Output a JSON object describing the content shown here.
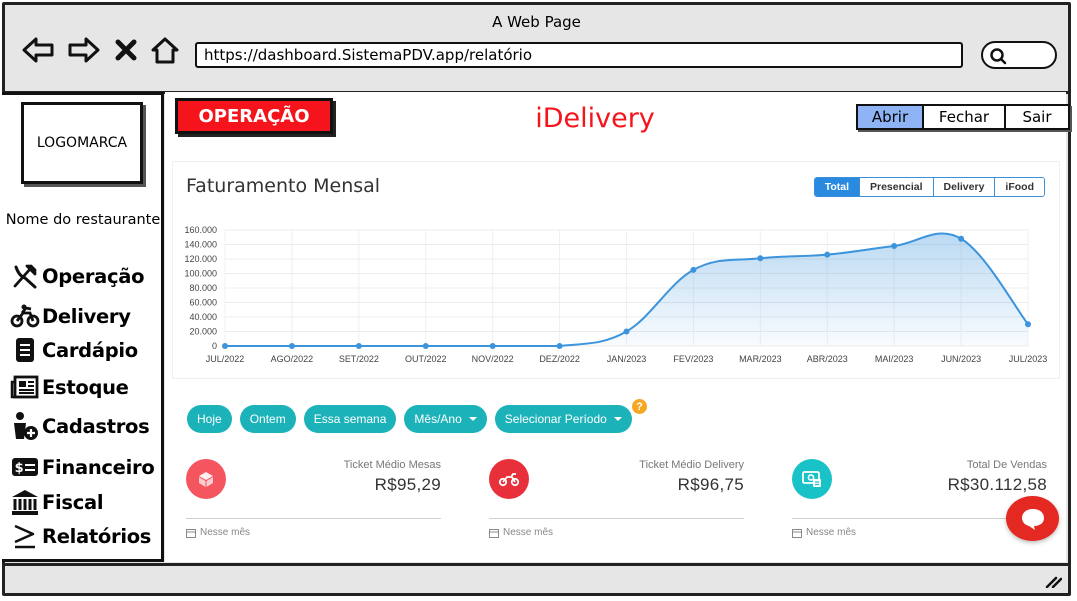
{
  "window": {
    "title": "A Web Page",
    "url": "https://dashboard.SistemaPDV.app/relatório"
  },
  "sidebar": {
    "logo": "LOGOMARCA",
    "restaurant_name": "Nome do restaurante",
    "items": [
      {
        "label": "Operação",
        "icon": "utensils-icon"
      },
      {
        "label": "Delivery",
        "icon": "motorcycle-icon"
      },
      {
        "label": "Cardápio",
        "icon": "menu-card-icon"
      },
      {
        "label": "Estoque",
        "icon": "newspaper-icon"
      },
      {
        "label": "Cadastros",
        "icon": "add-user-icon"
      },
      {
        "label": "Financeiro",
        "icon": "money-icon"
      },
      {
        "label": "Fiscal",
        "icon": "bank-icon"
      },
      {
        "label": "Relatórios",
        "icon": "greater-equal-icon"
      }
    ]
  },
  "header": {
    "badge": "OPERAÇÃO",
    "title": "iDelivery",
    "actions": [
      "Abrir",
      "Fechar",
      "Sair"
    ],
    "active_action": "Abrir",
    "accent": "#f5141b"
  },
  "chart_card": {
    "tabs": [
      "Total",
      "Presencial",
      "Delivery",
      "iFood"
    ],
    "active_tab": "Total"
  },
  "chart_data": {
    "type": "area",
    "title": "Faturamento Mensal",
    "categories": [
      "JUL/2022",
      "AGO/2022",
      "SET/2022",
      "OUT/2022",
      "NOV/2022",
      "DEZ/2022",
      "JAN/2023",
      "FEV/2023",
      "MAR/2023",
      "ABR/2023",
      "MAI/2023",
      "JUN/2023",
      "JUL/2023"
    ],
    "values": [
      0,
      0,
      0,
      0,
      0,
      0,
      20000,
      105000,
      121000,
      126000,
      138000,
      148000,
      30000
    ],
    "yticks": [
      "160.000",
      "140.000",
      "120.000",
      "100.000",
      "80.000",
      "60.000",
      "40.000",
      "20.000",
      "0"
    ],
    "ylim": [
      0,
      160000
    ],
    "grid": true,
    "color": "#3b94dc"
  },
  "filters": {
    "items": [
      {
        "label": "Hoje",
        "dropdown": false
      },
      {
        "label": "Ontem",
        "dropdown": false
      },
      {
        "label": "Essa semana",
        "dropdown": false
      },
      {
        "label": "Mês/Ano",
        "dropdown": true
      },
      {
        "label": "Selecionar Período",
        "dropdown": true
      }
    ],
    "help": "?"
  },
  "stats": [
    {
      "label": "Ticket Médio Mesas",
      "value": "R$95,29",
      "footer": "Nesse mês",
      "color": "#f4555f",
      "icon": "cube-icon"
    },
    {
      "label": "Ticket Médio Delivery",
      "value": "R$96,75",
      "footer": "Nesse mês",
      "color": "#e8303a",
      "icon": "motorcycle-icon"
    },
    {
      "label": "Total De Vendas",
      "value": "R$30.112,58",
      "footer": "Nesse mês",
      "color": "#19c2c7",
      "icon": "cash-icon"
    }
  ]
}
